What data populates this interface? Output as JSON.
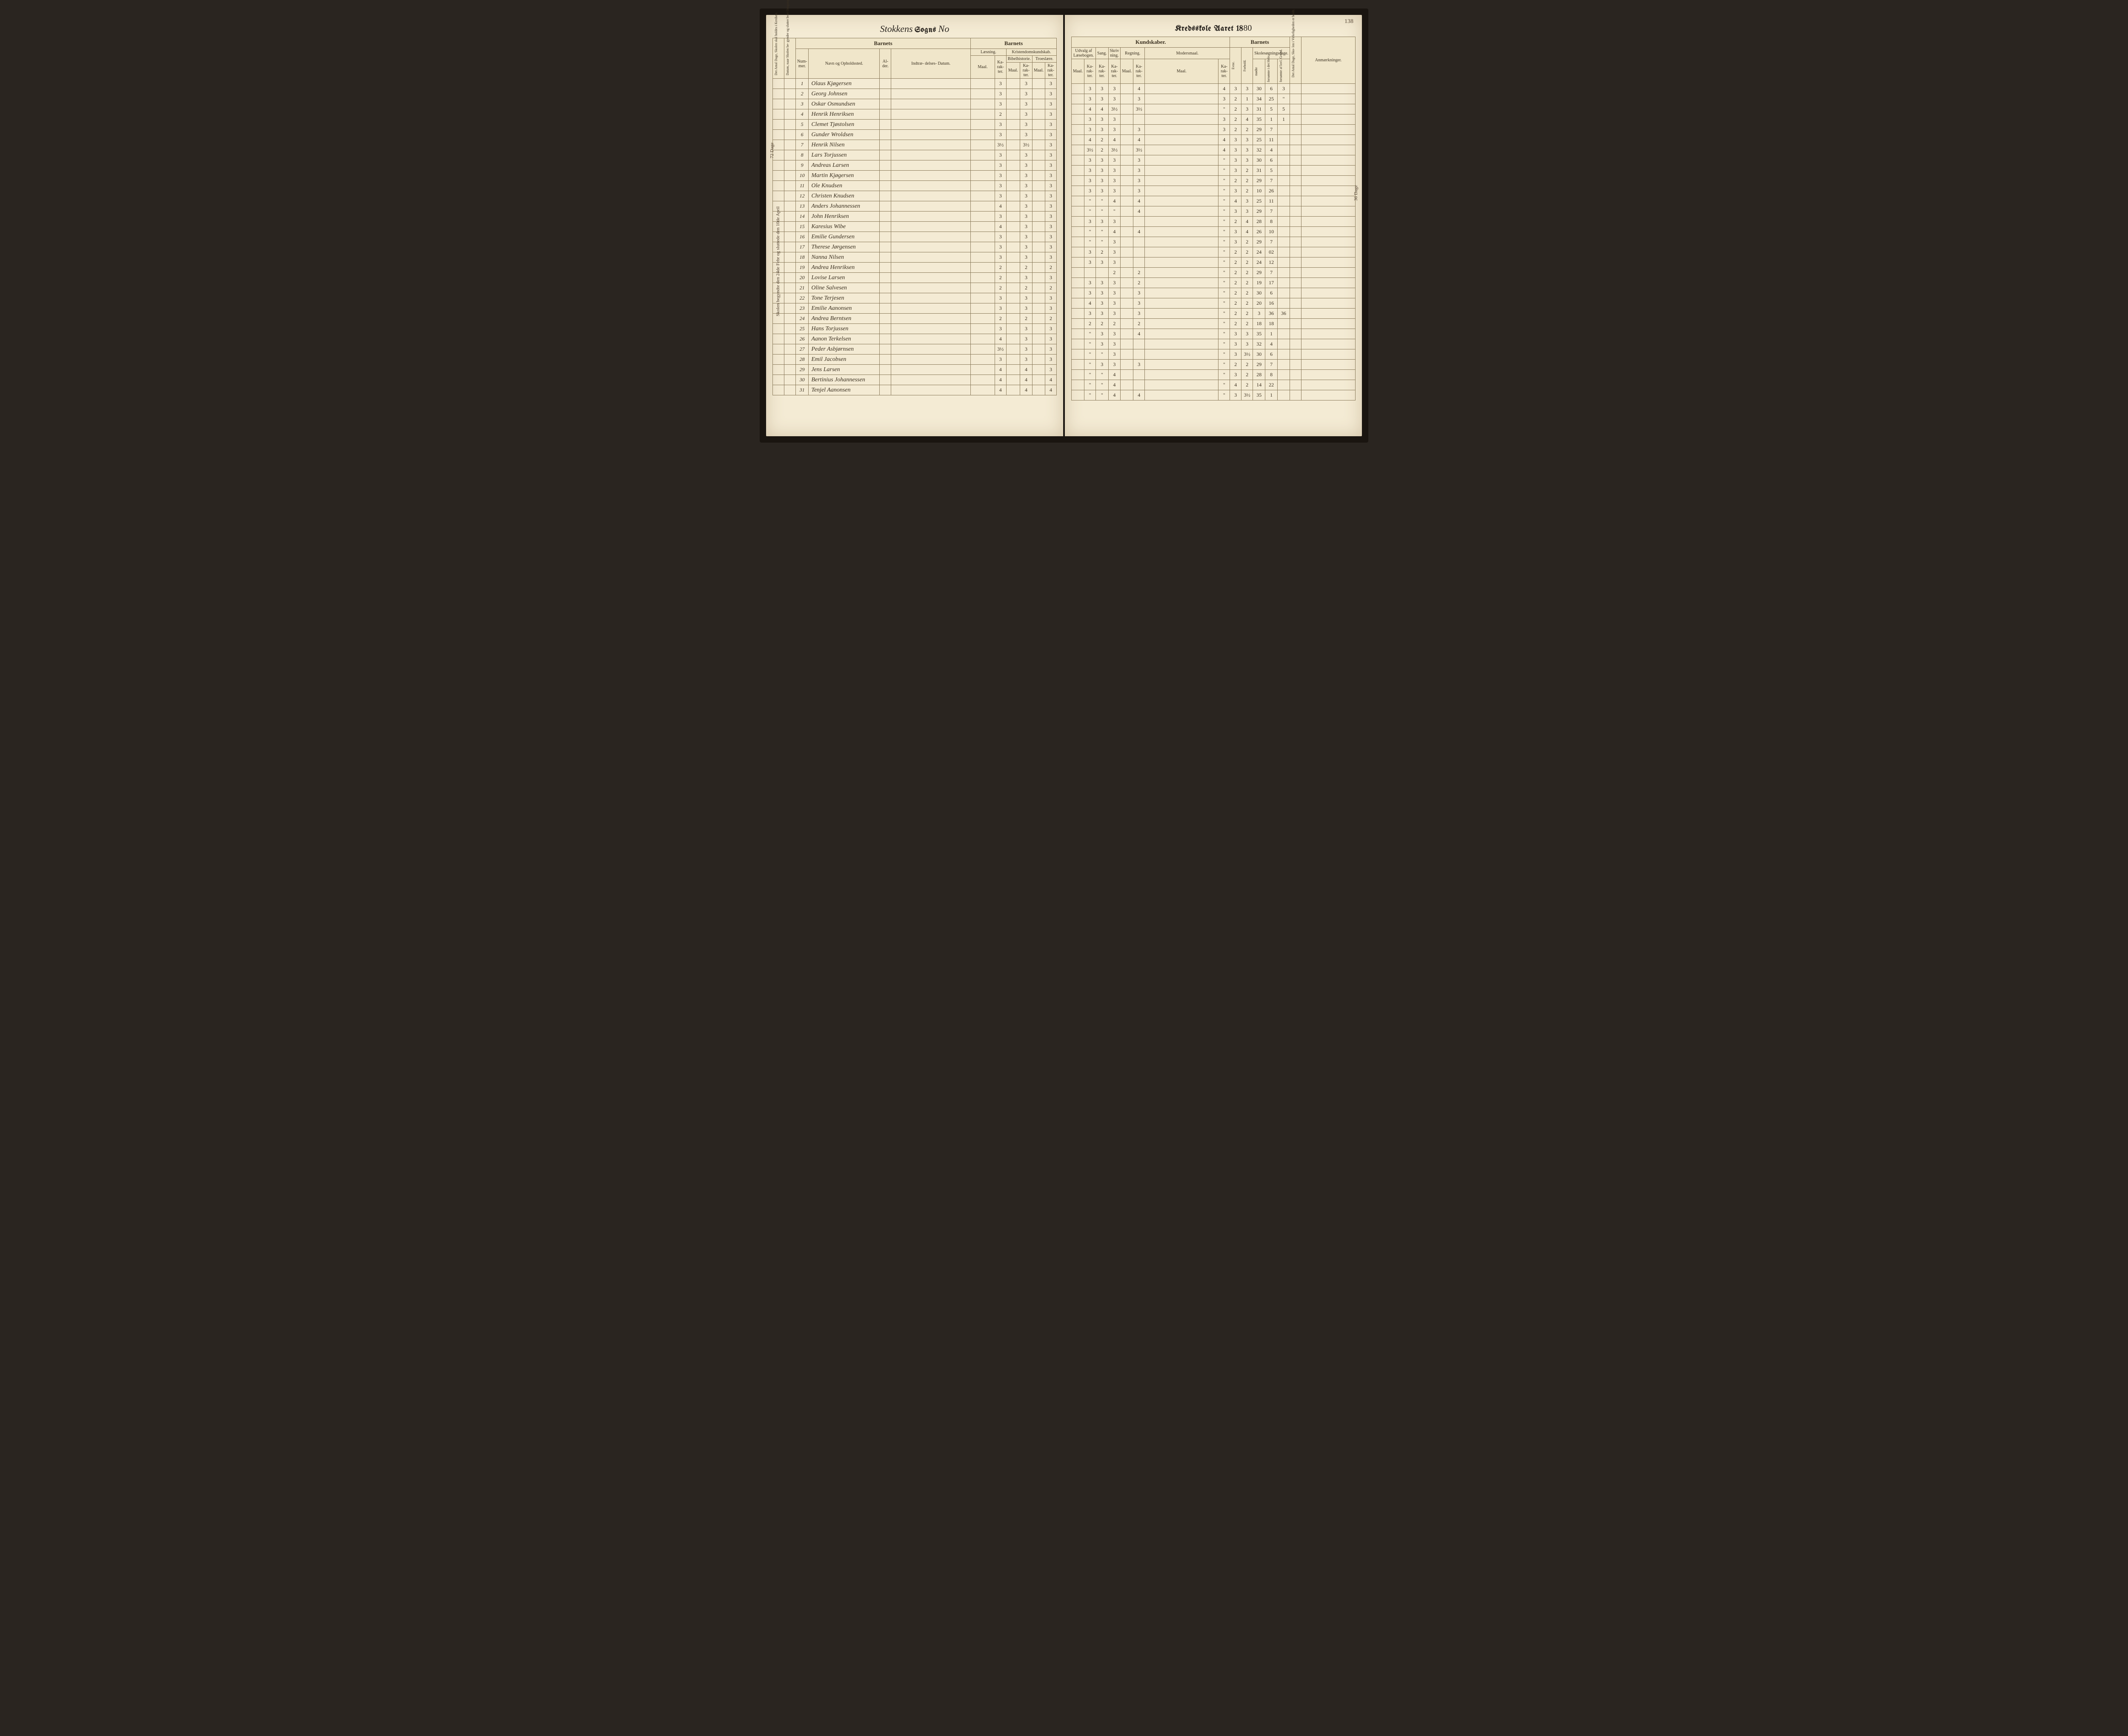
{
  "page_number": "138",
  "title": {
    "script_prefix": "Stokkens",
    "sogns": "Sogns",
    "no": "No",
    "kredsskole": "Kredsskole Aaret 18",
    "year_suffix": "80"
  },
  "headers": {
    "barnets": "Barnets",
    "kundskaber": "Kundskaber.",
    "anmaerkninger": "Anmærkninger.",
    "nummer": "Num-\nmer.",
    "navn": "Navn og Opholdssted.",
    "alder": "Al-\nder.",
    "indtrae": "Indtræ-\ndelses-\nDatum.",
    "laesning": "Læsning.",
    "kristendom": "Kristendomskundskab.",
    "bibelhistorie": "Bibelhistorie.",
    "troeslaere": "Troeslære.",
    "udvalg": "Udvalg af\nLæsebogen.",
    "sang": "Sang.",
    "skrivning": "Skriv\nning.",
    "regning": "Regning.",
    "modersmaal": "Modersmaal.",
    "skolesogning": "Skolesøgningsdage.",
    "maal": "Maal.",
    "karakter": "Ka-\nrak-\nter.",
    "evne": "Evne.",
    "forhold": "Forhold.",
    "modte": "mødte",
    "forsomte_hele": "forsømte i\ndet Hele.",
    "forsomte_lovl": "forsømte af\nlovl. Grund.",
    "antal_dage_skole": "Det Antal Dage, Skolen\nskal holdes i Kredsen.",
    "datum_skolen": "Datum, naar Skolen be-\ngynder og slutter hver\nOmgang.",
    "antal_dage_virkelig": "Det Antal Dage, Sko-\nlen i Virkeligheden\ner holdt."
  },
  "side_note_left": "72 Dage",
  "side_note_left2": "Skolen begyndte den 24de Febr og sluttede den 10de April",
  "side_note_right": "36 Dage",
  "rows": [
    {
      "n": "1",
      "name": "Olaus Kjøgersen",
      "l": "3",
      "b": "3",
      "t": "3",
      "u1": "3",
      "u2": "3",
      "sa": "3",
      "sk": "",
      "r": "4",
      "m": "4",
      "e": "3",
      "f": "3",
      "mo": "30",
      "fh": "6",
      "fl": "3"
    },
    {
      "n": "2",
      "name": "Georg Johnsen",
      "l": "3",
      "b": "3",
      "t": "3",
      "u1": "3",
      "u2": "3",
      "sa": "3",
      "sk": "",
      "r": "3",
      "m": "3",
      "e": "2",
      "f": "1",
      "mo": "34",
      "fh": "25",
      "fl": "\""
    },
    {
      "n": "3",
      "name": "Oskar Osmundsen",
      "l": "3",
      "b": "3",
      "t": "3",
      "u1": "4",
      "u2": "4",
      "sa": "3½",
      "sk": "",
      "r": "3½",
      "m": "\"",
      "e": "2",
      "f": "3",
      "mo": "31",
      "fh": "5",
      "fl": "5"
    },
    {
      "n": "4",
      "name": "Henrik Henriksen",
      "l": "2",
      "b": "3",
      "t": "3",
      "u1": "3",
      "u2": "3",
      "sa": "3",
      "sk": "",
      "r": "",
      "m": "3",
      "e": "2",
      "f": "4",
      "mo": "35",
      "fh": "1",
      "fl": "1"
    },
    {
      "n": "5",
      "name": "Clemet Tjøstolsen",
      "l": "3",
      "b": "3",
      "t": "3",
      "u1": "3",
      "u2": "3",
      "sa": "3",
      "sk": "",
      "r": "3",
      "m": "3",
      "e": "2",
      "f": "2",
      "mo": "29",
      "fh": "7",
      "fl": ""
    },
    {
      "n": "6",
      "name": "Gunder Wroldsen",
      "l": "3",
      "b": "3",
      "t": "3",
      "u1": "4",
      "u2": "2",
      "sa": "4",
      "sk": "",
      "r": "4",
      "m": "4",
      "e": "3",
      "f": "3",
      "mo": "25",
      "fh": "11",
      "fl": ""
    },
    {
      "n": "7",
      "name": "Henrik Nilsen",
      "l": "3½",
      "b": "3½",
      "t": "3",
      "u1": "3½",
      "u2": "2",
      "sa": "3½",
      "sk": "",
      "r": "3½",
      "m": "4",
      "e": "3",
      "f": "3",
      "mo": "32",
      "fh": "4",
      "fl": ""
    },
    {
      "n": "8",
      "name": "Lars Torjussen",
      "l": "3",
      "b": "3",
      "t": "3",
      "u1": "3",
      "u2": "3",
      "sa": "3",
      "sk": "",
      "r": "3",
      "m": "\"",
      "e": "3",
      "f": "3",
      "mo": "30",
      "fh": "6",
      "fl": ""
    },
    {
      "n": "9",
      "name": "Andreas Larsen",
      "l": "3",
      "b": "3",
      "t": "3",
      "u1": "3",
      "u2": "3",
      "sa": "3",
      "sk": "",
      "r": "3",
      "m": "\"",
      "e": "3",
      "f": "2",
      "mo": "31",
      "fh": "5",
      "fl": ""
    },
    {
      "n": "10",
      "name": "Martin Kjøgersen",
      "l": "3",
      "b": "3",
      "t": "3",
      "u1": "3",
      "u2": "3",
      "sa": "3",
      "sk": "",
      "r": "3",
      "m": "\"",
      "e": "2",
      "f": "2",
      "mo": "29",
      "fh": "7",
      "fl": ""
    },
    {
      "n": "11",
      "name": "Ole Knudsen",
      "l": "3",
      "b": "3",
      "t": "3",
      "u1": "3",
      "u2": "3",
      "sa": "3",
      "sk": "",
      "r": "3",
      "m": "\"",
      "e": "3",
      "f": "2",
      "mo": "10",
      "fh": "26",
      "fl": ""
    },
    {
      "n": "12",
      "name": "Christen Knudsen",
      "l": "3",
      "b": "3",
      "t": "3",
      "u1": "\"",
      "u2": "\"",
      "sa": "4",
      "sk": "",
      "r": "4",
      "m": "\"",
      "e": "4",
      "f": "3",
      "mo": "25",
      "fh": "11",
      "fl": ""
    },
    {
      "n": "13",
      "name": "Anders Johannessen",
      "l": "4",
      "b": "3",
      "t": "3",
      "u1": "\"",
      "u2": "\"",
      "sa": "\"",
      "sk": "",
      "r": "4",
      "m": "\"",
      "e": "3",
      "f": "3",
      "mo": "29",
      "fh": "7",
      "fl": ""
    },
    {
      "n": "14",
      "name": "John Henriksen",
      "l": "3",
      "b": "3",
      "t": "3",
      "u1": "3",
      "u2": "3",
      "sa": "3",
      "sk": "",
      "r": "",
      "m": "\"",
      "e": "2",
      "f": "4",
      "mo": "28",
      "fh": "8",
      "fl": ""
    },
    {
      "n": "15",
      "name": "Karesius Wibe",
      "l": "4",
      "b": "3",
      "t": "3",
      "u1": "\"",
      "u2": "\"",
      "sa": "4",
      "sk": "",
      "r": "4",
      "m": "\"",
      "e": "3",
      "f": "4",
      "mo": "26",
      "fh": "10",
      "fl": ""
    },
    {
      "n": "16",
      "name": "Emilie Gundersen",
      "l": "3",
      "b": "3",
      "t": "3",
      "u1": "\"",
      "u2": "\"",
      "sa": "3",
      "sk": "",
      "r": "",
      "m": "\"",
      "e": "3",
      "f": "2",
      "mo": "29",
      "fh": "7",
      "fl": ""
    },
    {
      "n": "17",
      "name": "Therese Jørgensen",
      "l": "3",
      "b": "3",
      "t": "3",
      "u1": "3",
      "u2": "2",
      "sa": "3",
      "sk": "",
      "r": "",
      "m": "\"",
      "e": "2",
      "f": "2",
      "mo": "24",
      "fh": "02",
      "fl": ""
    },
    {
      "n": "18",
      "name": "Nanna Nilsen",
      "l": "3",
      "b": "3",
      "t": "3",
      "u1": "3",
      "u2": "3",
      "sa": "3",
      "sk": "",
      "r": "",
      "m": "\"",
      "e": "2",
      "f": "2",
      "mo": "24",
      "fh": "12",
      "fl": ""
    },
    {
      "n": "19",
      "name": "Andrea Henriksen",
      "l": "2",
      "b": "2",
      "t": "2",
      "u1": "",
      "u2": "",
      "sa": "2",
      "sk": "",
      "r": "2",
      "m": "\"",
      "e": "2",
      "f": "2",
      "mo": "29",
      "fh": "7",
      "fl": ""
    },
    {
      "n": "20",
      "name": "Lovise Larsen",
      "l": "2",
      "b": "3",
      "t": "3",
      "u1": "3",
      "u2": "3",
      "sa": "3",
      "sk": "",
      "r": "2",
      "m": "\"",
      "e": "2",
      "f": "2",
      "mo": "19",
      "fh": "17",
      "fl": ""
    },
    {
      "n": "21",
      "name": "Oline Salvesen",
      "l": "2",
      "b": "2",
      "t": "2",
      "u1": "3",
      "u2": "3",
      "sa": "3",
      "sk": "",
      "r": "3",
      "m": "\"",
      "e": "2",
      "f": "2",
      "mo": "30",
      "fh": "6",
      "fl": ""
    },
    {
      "n": "22",
      "name": "Tone Terjesen",
      "l": "3",
      "b": "3",
      "t": "3",
      "u1": "4",
      "u2": "3",
      "sa": "3",
      "sk": "",
      "r": "3",
      "m": "\"",
      "e": "2",
      "f": "2",
      "mo": "20",
      "fh": "16",
      "fl": ""
    },
    {
      "n": "23",
      "name": "Emilie Aanonsen",
      "l": "3",
      "b": "3",
      "t": "3",
      "u1": "3",
      "u2": "3",
      "sa": "3",
      "sk": "",
      "r": "3",
      "m": "\"",
      "e": "2",
      "f": "2",
      "mo": "3",
      "fh": "36",
      "fl": "36"
    },
    {
      "n": "24",
      "name": "Andrea Berntsen",
      "l": "2",
      "b": "2",
      "t": "2",
      "u1": "2",
      "u2": "2",
      "sa": "2",
      "sk": "",
      "r": "2",
      "m": "\"",
      "e": "2",
      "f": "2",
      "mo": "18",
      "fh": "18",
      "fl": ""
    },
    {
      "n": "25",
      "name": "Hans Torjussen",
      "l": "3",
      "b": "3",
      "t": "3",
      "u1": "\"",
      "u2": "3",
      "sa": "3",
      "sk": "",
      "r": "4",
      "m": "\"",
      "e": "3",
      "f": "3",
      "mo": "35",
      "fh": "1",
      "fl": ""
    },
    {
      "n": "26",
      "name": "Aanon Terkelsen",
      "l": "4",
      "b": "3",
      "t": "3",
      "u1": "\"",
      "u2": "3",
      "sa": "3",
      "sk": "",
      "r": "",
      "m": "\"",
      "e": "3",
      "f": "3",
      "mo": "32",
      "fh": "4",
      "fl": ""
    },
    {
      "n": "27",
      "name": "Peder Asbjørnsen",
      "l": "3½",
      "b": "3",
      "t": "3",
      "u1": "\"",
      "u2": "\"",
      "sa": "3",
      "sk": "",
      "r": "",
      "m": "\"",
      "e": "3",
      "f": "3½",
      "mo": "30",
      "fh": "6",
      "fl": ""
    },
    {
      "n": "28",
      "name": "Emil Jacobsen",
      "l": "3",
      "b": "3",
      "t": "3",
      "u1": "\"",
      "u2": "3",
      "sa": "3",
      "sk": "",
      "r": "3",
      "m": "\"",
      "e": "2",
      "f": "2",
      "mo": "29",
      "fh": "7",
      "fl": ""
    },
    {
      "n": "29",
      "name": "Jens Larsen",
      "l": "4",
      "b": "4",
      "t": "3",
      "u1": "\"",
      "u2": "\"",
      "sa": "4",
      "sk": "",
      "r": "",
      "m": "\"",
      "e": "3",
      "f": "2",
      "mo": "28",
      "fh": "8",
      "fl": ""
    },
    {
      "n": "30",
      "name": "Bertinius Johannessen",
      "l": "4",
      "b": "4",
      "t": "4",
      "u1": "\"",
      "u2": "\"",
      "sa": "4",
      "sk": "",
      "r": "",
      "m": "\"",
      "e": "4",
      "f": "2",
      "mo": "14",
      "fh": "22",
      "fl": ""
    },
    {
      "n": "31",
      "name": "Tenjel Aanonsen",
      "l": "4",
      "b": "4",
      "t": "4",
      "u1": "\"",
      "u2": "\"",
      "sa": "4",
      "sk": "",
      "r": "4",
      "m": "\"",
      "e": "3",
      "f": "3½",
      "mo": "35",
      "fh": "1",
      "fl": ""
    }
  ]
}
